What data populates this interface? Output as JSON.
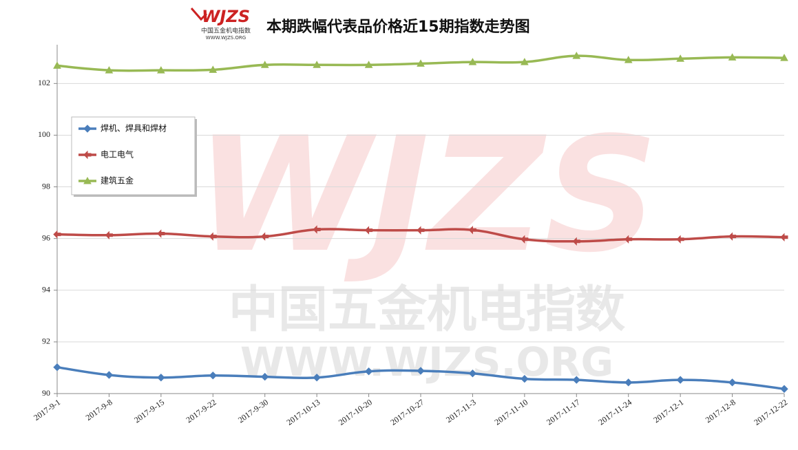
{
  "chart_data": {
    "type": "line",
    "title": "本期跌幅代表品价格近15期指数走势图",
    "logo_text": "WJZS",
    "logo_subtitle": "中国五金机电指数",
    "logo_url": "WWW.WJZS.ORG",
    "watermark_text": "中国五金机电指数",
    "watermark_url": "WWW.WJZS.ORG",
    "categories": [
      "2017-9-1",
      "2017-9-8",
      "2017-9-15",
      "2017-9-22",
      "2017-9-30",
      "2017-10-13",
      "2017-10-20",
      "2017-10-27",
      "2017-11-3",
      "2017-11-10",
      "2017-11-17",
      "2017-11-24",
      "2017-12-1",
      "2017-12-8",
      "2017-12-22"
    ],
    "series": [
      {
        "name": "焊机、焊具和焊材",
        "color": "#4a7ebb",
        "marker": "diamond",
        "values": [
          91.02,
          90.72,
          90.62,
          90.7,
          90.65,
          90.62,
          90.86,
          90.88,
          90.78,
          90.57,
          90.53,
          90.43,
          90.53,
          90.43,
          90.18
        ]
      },
      {
        "name": "电工电气",
        "color": "#be4b48",
        "marker": "arrow",
        "values": [
          96.16,
          96.13,
          96.19,
          96.08,
          96.08,
          96.35,
          96.32,
          96.32,
          96.33,
          95.97,
          95.89,
          95.97,
          95.97,
          96.08,
          96.05
        ]
      },
      {
        "name": "建筑五金",
        "color": "#98b954",
        "marker": "triangle",
        "values": [
          102.69,
          102.51,
          102.51,
          102.53,
          102.72,
          102.72,
          102.72,
          102.77,
          102.83,
          102.83,
          103.07,
          102.91,
          102.96,
          103.01,
          102.99
        ]
      }
    ],
    "ylim": [
      90,
      103.5
    ],
    "yticks": [
      90,
      92,
      94,
      96,
      98,
      100,
      102
    ],
    "grid": true,
    "legend": "left"
  }
}
